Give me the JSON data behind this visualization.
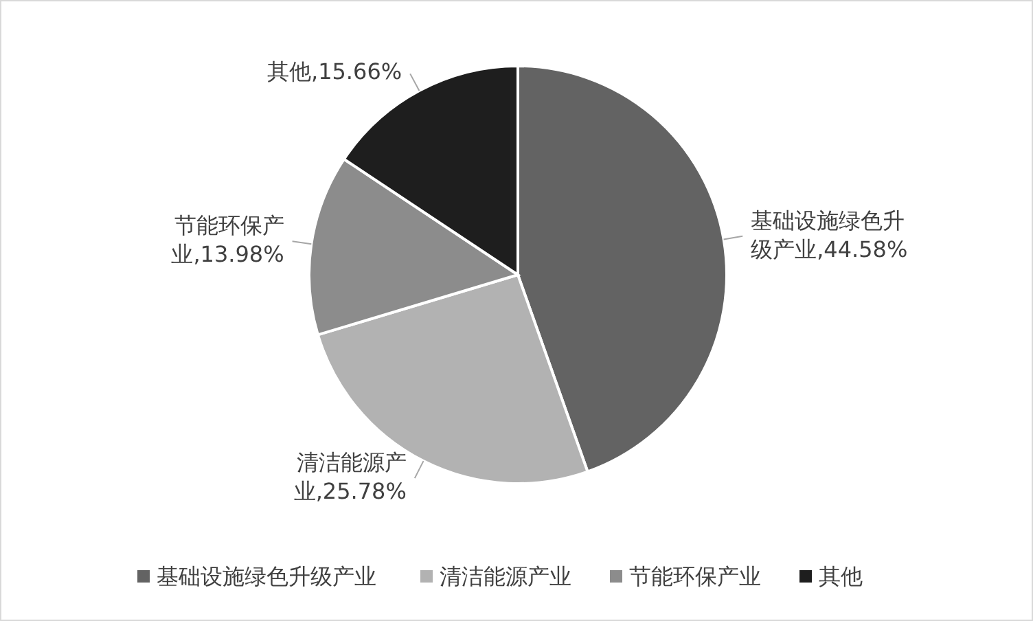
{
  "chart_data": {
    "type": "pie",
    "categories": [
      "基础设施绿色升级产业",
      "清洁能源产业",
      "节能环保产业",
      "其他"
    ],
    "values": [
      44.58,
      25.78,
      13.98,
      15.66
    ],
    "colors": [
      "#636363",
      "#b2b2b2",
      "#8c8c8c",
      "#1e1e1e"
    ],
    "value_labels": [
      "基础设施绿色升级产业,44.58%",
      "清洁能源产业,25.78%",
      "节能环保产业,13.98%",
      "其他,15.66%"
    ],
    "legend": "bottom"
  }
}
